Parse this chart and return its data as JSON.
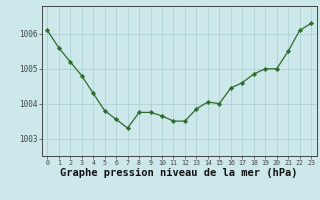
{
  "x": [
    0,
    1,
    2,
    3,
    4,
    5,
    6,
    7,
    8,
    9,
    10,
    11,
    12,
    13,
    14,
    15,
    16,
    17,
    18,
    19,
    20,
    21,
    22,
    23
  ],
  "y": [
    1006.1,
    1005.6,
    1005.2,
    1004.8,
    1004.3,
    1003.8,
    1003.55,
    1003.3,
    1003.75,
    1003.75,
    1003.65,
    1003.5,
    1003.5,
    1003.85,
    1004.05,
    1004.0,
    1004.45,
    1004.6,
    1004.85,
    1005.0,
    1005.0,
    1005.5,
    1006.1,
    1006.3
  ],
  "line_color": "#2d6a2d",
  "marker": "D",
  "marker_size": 2.2,
  "bg_color": "#cce8ea",
  "grid_color": "#aacdd0",
  "xlabel": "Graphe pression niveau de la mer (hPa)",
  "xlabel_fontsize": 7.5,
  "ylabel_ticks": [
    1003,
    1004,
    1005,
    1006
  ],
  "ylim": [
    1002.5,
    1006.8
  ],
  "xlim": [
    -0.5,
    23.5
  ],
  "xtick_labels": [
    "0",
    "1",
    "2",
    "3",
    "4",
    "5",
    "6",
    "7",
    "8",
    "9",
    "10",
    "11",
    "12",
    "13",
    "14",
    "15",
    "16",
    "17",
    "18",
    "19",
    "20",
    "21",
    "22",
    "23"
  ]
}
